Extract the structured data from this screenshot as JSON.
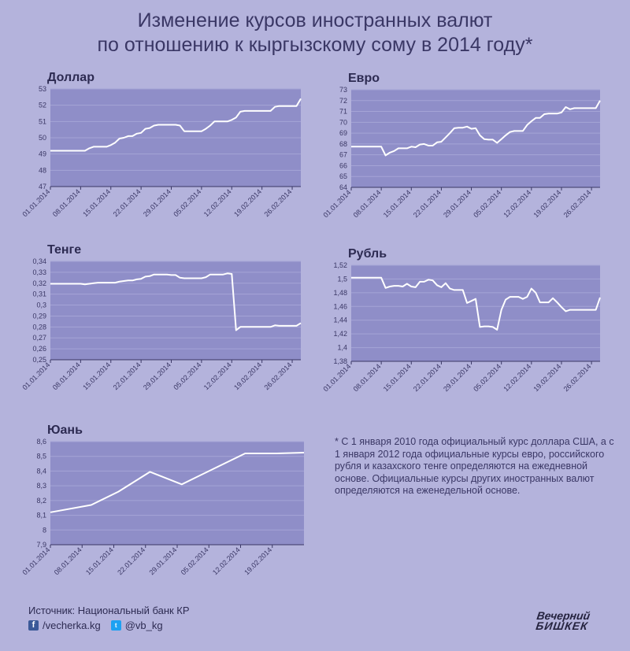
{
  "title": {
    "line1": "Изменение курсов иностранных валют",
    "line2": "по отношению к кыргызскому сому в 2014 году*"
  },
  "note": "* С 1 января 2010 года официальный курс доллара США, а с 1 января 2012 года официальные курсы евро, российского рубля и казахского тенге определяются на ежедневной основе. Официальные курсы других иностранных валют определяются на еженедельной основе.",
  "source": "Источник: Национальный банк КР",
  "social": {
    "facebook": "/vecherka.kg",
    "twitter": "@vb_kg"
  },
  "logo": {
    "line1": "Вечерний",
    "line2": "БИШКЕК"
  },
  "colors": {
    "background": "#b4b3dc",
    "plot": "#8f8ec8",
    "line": "#ffffff",
    "text": "#3a3765"
  },
  "chart_data": [
    {
      "id": "usd",
      "type": "line",
      "title": "Доллар",
      "xlim": [
        0,
        58
      ],
      "ylim": [
        47,
        53
      ],
      "yticks": [
        "47",
        "48",
        "49",
        "50",
        "51",
        "52",
        "53"
      ],
      "xticks": [
        "01.01.2014",
        "08.01.2014",
        "15.01.2014",
        "22.01.2014",
        "29.01.2014",
        "05.02.2014",
        "12.02.2014",
        "19.02.2014",
        "26.02.2014"
      ],
      "x": [
        0,
        7,
        8,
        9,
        10,
        11,
        12,
        13,
        14,
        15,
        16,
        17,
        18,
        19,
        20,
        21,
        22,
        23,
        24,
        25,
        26,
        27,
        28,
        29,
        30,
        31,
        32,
        33,
        34,
        35,
        36,
        37,
        38,
        39,
        40,
        41,
        42,
        43,
        44,
        45,
        46,
        47,
        48,
        49,
        50,
        51,
        52,
        53,
        54,
        55,
        56,
        57,
        58
      ],
      "y": [
        49.2,
        49.2,
        49.2,
        49.35,
        49.45,
        49.45,
        49.45,
        49.45,
        49.55,
        49.7,
        49.95,
        50.0,
        50.1,
        50.1,
        50.25,
        50.3,
        50.55,
        50.6,
        50.75,
        50.8,
        50.8,
        50.8,
        50.8,
        50.8,
        50.75,
        50.4,
        50.4,
        50.4,
        50.4,
        50.4,
        50.55,
        50.75,
        51.0,
        51.0,
        51.0,
        51.0,
        51.1,
        51.25,
        51.6,
        51.65,
        51.65,
        51.65,
        51.65,
        51.65,
        51.65,
        51.65,
        51.9,
        51.95,
        51.95,
        51.95,
        51.95,
        51.95,
        52.4
      ]
    },
    {
      "id": "eur",
      "type": "line",
      "title": "Евро",
      "xlim": [
        0,
        58
      ],
      "ylim": [
        64,
        73
      ],
      "yticks": [
        "64",
        "65",
        "66",
        "67",
        "68",
        "69",
        "70",
        "71",
        "72",
        "73"
      ],
      "xticks": [
        "01.01.2014",
        "08.01.2014",
        "15.01.2014",
        "22.01.2014",
        "29.01.2014",
        "05.02.2014",
        "12.02.2014",
        "19.02.2014",
        "26.02.2014"
      ],
      "x": [
        0,
        7,
        8,
        9,
        10,
        11,
        12,
        13,
        14,
        15,
        16,
        17,
        18,
        19,
        20,
        21,
        22,
        23,
        24,
        25,
        26,
        27,
        28,
        29,
        30,
        31,
        32,
        33,
        34,
        35,
        36,
        37,
        38,
        39,
        40,
        41,
        42,
        43,
        44,
        45,
        46,
        47,
        48,
        49,
        50,
        51,
        52,
        53,
        54,
        55,
        56,
        57,
        58
      ],
      "y": [
        67.75,
        67.75,
        66.95,
        67.2,
        67.35,
        67.6,
        67.6,
        67.6,
        67.75,
        67.7,
        67.95,
        68.0,
        67.85,
        67.85,
        68.15,
        68.2,
        68.6,
        69.0,
        69.45,
        69.5,
        69.5,
        69.6,
        69.4,
        69.45,
        68.8,
        68.45,
        68.4,
        68.4,
        68.1,
        68.45,
        68.8,
        69.1,
        69.2,
        69.2,
        69.2,
        69.75,
        70.1,
        70.4,
        70.4,
        70.75,
        70.8,
        70.8,
        70.8,
        70.9,
        71.4,
        71.2,
        71.3,
        71.3,
        71.3,
        71.3,
        71.3,
        71.3,
        72.0
      ]
    },
    {
      "id": "kzt",
      "type": "line",
      "title": "Тенге",
      "xlim": [
        0,
        58
      ],
      "ylim": [
        0.25,
        0.34
      ],
      "yticks": [
        "0,25",
        "0,26",
        "0,27",
        "0,28",
        "0,29",
        "0,3",
        "0,31",
        "0,32",
        "0,33",
        "0,34"
      ],
      "xticks": [
        "01.01.2014",
        "08.01.2014",
        "15.01.2014",
        "22.01.2014",
        "29.01.2014",
        "05.02.2014",
        "12.02.2014",
        "19.02.2014",
        "26.02.2014"
      ],
      "x": [
        0,
        7,
        8,
        9,
        10,
        11,
        12,
        13,
        14,
        15,
        16,
        17,
        18,
        19,
        20,
        21,
        22,
        23,
        24,
        25,
        26,
        27,
        28,
        29,
        30,
        31,
        32,
        33,
        34,
        35,
        36,
        37,
        38,
        39,
        40,
        41,
        42,
        43,
        44,
        45,
        46,
        47,
        48,
        49,
        50,
        51,
        52,
        53,
        54,
        55,
        56,
        57,
        58
      ],
      "y": [
        0.3195,
        0.3195,
        0.319,
        0.3195,
        0.32,
        0.3205,
        0.3205,
        0.3205,
        0.3205,
        0.3205,
        0.3215,
        0.322,
        0.3225,
        0.3225,
        0.3235,
        0.324,
        0.326,
        0.3265,
        0.328,
        0.328,
        0.328,
        0.328,
        0.3275,
        0.3275,
        0.325,
        0.3245,
        0.3245,
        0.3245,
        0.3245,
        0.3245,
        0.3255,
        0.328,
        0.328,
        0.328,
        0.328,
        0.329,
        0.3285,
        0.277,
        0.28,
        0.28,
        0.28,
        0.28,
        0.28,
        0.28,
        0.28,
        0.28,
        0.2815,
        0.281,
        0.281,
        0.281,
        0.281,
        0.281,
        0.2835
      ]
    },
    {
      "id": "rub",
      "type": "line",
      "title": "Рубль",
      "xlim": [
        0,
        58
      ],
      "ylim": [
        1.38,
        1.52
      ],
      "yticks": [
        "1,38",
        "1,4",
        "1,42",
        "1,44",
        "1,46",
        "1,48",
        "1,5",
        "1,52"
      ],
      "xticks": [
        "01.01.2014",
        "08.01.2014",
        "15.01.2014",
        "22.01.2014",
        "29.01.2014",
        "05.02.2014",
        "12.02.2014",
        "19.02.2014",
        "26.02.2014"
      ],
      "x": [
        0,
        7,
        8,
        9,
        10,
        11,
        12,
        13,
        14,
        15,
        16,
        17,
        18,
        19,
        20,
        21,
        22,
        23,
        24,
        25,
        26,
        27,
        28,
        29,
        30,
        31,
        32,
        33,
        34,
        35,
        36,
        37,
        38,
        39,
        40,
        41,
        42,
        43,
        44,
        45,
        46,
        47,
        48,
        49,
        50,
        51,
        52,
        53,
        54,
        55,
        56,
        57,
        58
      ],
      "y": [
        1.502,
        1.502,
        1.487,
        1.489,
        1.49,
        1.49,
        1.489,
        1.493,
        1.489,
        1.488,
        1.496,
        1.496,
        1.499,
        1.498,
        1.491,
        1.488,
        1.494,
        1.486,
        1.484,
        1.484,
        1.484,
        1.465,
        1.468,
        1.471,
        1.43,
        1.431,
        1.431,
        1.43,
        1.426,
        1.455,
        1.47,
        1.474,
        1.474,
        1.474,
        1.471,
        1.474,
        1.486,
        1.48,
        1.466,
        1.466,
        1.466,
        1.472,
        1.466,
        1.459,
        1.453,
        1.455,
        1.455,
        1.455,
        1.455,
        1.455,
        1.455,
        1.455,
        1.473
      ]
    },
    {
      "id": "cny",
      "type": "line",
      "title": "Юань",
      "xlim": [
        0,
        56
      ],
      "ylim": [
        7.9,
        8.6
      ],
      "yticks": [
        "7,9",
        "8",
        "8,1",
        "8,2",
        "8,3",
        "8,4",
        "8,5",
        "8,6"
      ],
      "xticks": [
        "01.01.2014",
        "08.01.2014",
        "15.01.2014",
        "22.01.2014",
        "29.01.2014",
        "05.02.2014",
        "12.02.2014",
        "19.02.2014"
      ],
      "x": [
        0,
        9,
        15,
        22,
        29,
        36,
        43,
        50,
        56
      ],
      "y": [
        8.12,
        8.17,
        8.26,
        8.395,
        8.31,
        8.415,
        8.52,
        8.52,
        8.525
      ]
    }
  ]
}
